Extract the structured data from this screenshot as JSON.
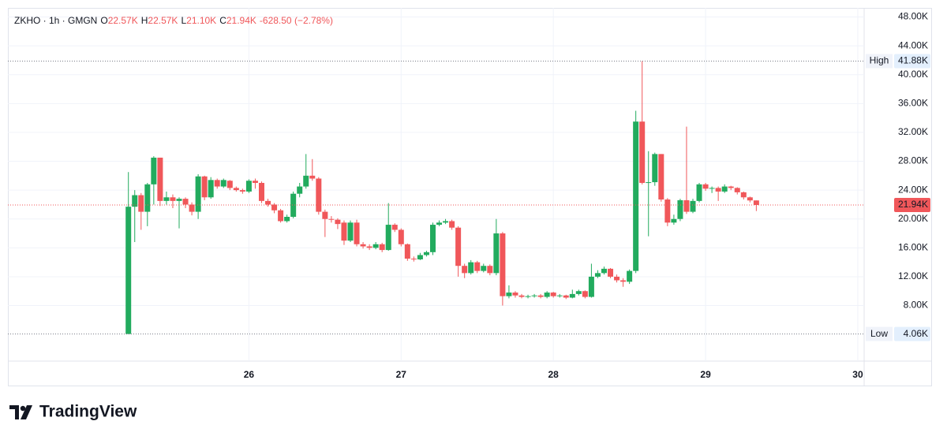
{
  "chart_data": {
    "type": "candlestick",
    "legend": {
      "symbol": "ZKHO · 1h · GMGN",
      "items": [
        {
          "key": "O",
          "value": "22.57K"
        },
        {
          "key": "H",
          "value": "22.57K"
        },
        {
          "key": "L",
          "value": "21.10K"
        },
        {
          "key": "C",
          "value": "21.94K"
        }
      ],
      "change": "-628.50 (−2.78%)"
    },
    "up_color": "#22ab5e",
    "down_color": "#f0575a",
    "x": [
      5,
      6,
      7,
      8,
      9,
      10,
      11,
      12,
      13,
      14,
      15,
      16,
      17,
      18,
      19,
      20,
      21,
      22,
      23,
      24,
      25,
      26,
      27,
      28,
      29,
      30,
      31,
      32,
      33,
      34,
      35,
      36,
      37,
      38,
      39,
      40,
      41,
      42,
      43,
      44,
      45,
      46,
      47,
      48,
      49,
      50,
      51,
      52,
      53,
      54,
      55,
      56,
      57,
      58,
      59,
      60,
      61,
      62,
      63,
      64,
      65,
      66,
      67,
      68,
      69,
      70,
      71,
      72,
      73,
      74,
      75,
      76,
      77,
      78,
      79,
      80,
      81,
      82,
      83,
      84,
      85,
      86,
      87,
      88,
      89,
      90,
      91,
      92,
      93,
      94,
      95,
      96,
      97,
      98,
      99,
      100,
      101,
      102,
      103,
      104
    ],
    "open": [
      4060,
      21700,
      23300,
      21000,
      24800,
      28500,
      22500,
      23000,
      22500,
      22800,
      22000,
      21000,
      25900,
      23000,
      25400,
      24500,
      25300,
      24300,
      24000,
      23800,
      25300,
      25000,
      22500,
      22000,
      21200,
      19700,
      20300,
      23500,
      24500,
      26000,
      25600,
      21000,
      20000,
      19900,
      19500,
      17000,
      19500,
      16500,
      16200,
      16000,
      16500,
      15700,
      19200,
      18500,
      16500,
      14500,
      14400,
      15000,
      15400,
      19200,
      19500,
      19700,
      18800,
      13500,
      12500,
      14000,
      12800,
      13500,
      12500,
      18000,
      9300,
      9800,
      9400,
      9200,
      9300,
      9400,
      9200,
      9800,
      9300,
      9400,
      9100,
      9600,
      10000,
      9200,
      12000,
      12500,
      13100,
      12000,
      11500,
      11300,
      12800,
      33500,
      25000,
      25100,
      29000,
      22700,
      19500,
      20000,
      22600,
      21000,
      22500,
      24800,
      24200,
      24300,
      23800,
      24500,
      24300,
      23700,
      23000,
      22570
    ],
    "high": [
      26500,
      24000,
      23600,
      25000,
      28700,
      28500,
      23800,
      23400,
      23000,
      23000,
      22300,
      26200,
      26000,
      25800,
      25600,
      25600,
      25400,
      24500,
      24200,
      25500,
      25600,
      25200,
      22800,
      22200,
      21400,
      20600,
      23800,
      25000,
      29000,
      28300,
      25800,
      21300,
      20400,
      20100,
      19800,
      19800,
      19900,
      16800,
      16500,
      16800,
      16700,
      22200,
      19400,
      18700,
      16600,
      14800,
      15300,
      15600,
      19500,
      19800,
      20000,
      19900,
      19000,
      13800,
      14300,
      14200,
      13800,
      13700,
      20000,
      18200,
      10800,
      10000,
      9600,
      9500,
      9600,
      9600,
      10000,
      9900,
      9600,
      9500,
      10200,
      10200,
      10100,
      13800,
      12900,
      13400,
      13200,
      12300,
      11800,
      13000,
      35000,
      41880,
      29400,
      29200,
      29000,
      22900,
      20600,
      22800,
      32800,
      22800,
      25000,
      25000,
      24500,
      24500,
      24800,
      24600,
      24400,
      23800,
      23100,
      22570
    ],
    "low": [
      4060,
      16800,
      18500,
      19000,
      22000,
      21800,
      22000,
      21500,
      18700,
      21500,
      20500,
      20000,
      22600,
      22800,
      24200,
      24300,
      24000,
      23800,
      23500,
      23600,
      24200,
      22200,
      21700,
      20800,
      19500,
      19500,
      20100,
      23000,
      24200,
      25300,
      20600,
      17500,
      19500,
      18600,
      16400,
      16800,
      16200,
      15900,
      15700,
      15800,
      15400,
      15600,
      18200,
      16200,
      14200,
      14100,
      14300,
      14800,
      15000,
      19000,
      19300,
      18500,
      12000,
      11800,
      12300,
      12500,
      12600,
      12200,
      12200,
      8000,
      9000,
      9100,
      9000,
      9000,
      9100,
      9000,
      9000,
      9100,
      9100,
      8900,
      9000,
      9400,
      9000,
      9100,
      11800,
      12300,
      11800,
      11200,
      10600,
      11000,
      12500,
      24800,
      17600,
      24600,
      22400,
      19000,
      19200,
      19700,
      20700,
      20800,
      22300,
      23900,
      23600,
      22500,
      23600,
      24000,
      23400,
      22700,
      22300,
      21100
    ],
    "close": [
      21700,
      23300,
      21000,
      24800,
      28500,
      22500,
      23000,
      22500,
      22800,
      22000,
      21000,
      25900,
      23000,
      25400,
      24500,
      25400,
      24300,
      24000,
      23800,
      25300,
      25000,
      22500,
      22000,
      21200,
      19700,
      20300,
      23500,
      24500,
      26000,
      25600,
      21000,
      20000,
      19900,
      19300,
      17000,
      19500,
      16500,
      16200,
      16000,
      16500,
      15700,
      19200,
      18500,
      16500,
      14500,
      14400,
      15000,
      15400,
      19200,
      19500,
      19700,
      18800,
      13500,
      12500,
      14000,
      12800,
      13500,
      12500,
      18000,
      9300,
      9800,
      9400,
      9200,
      9300,
      9400,
      9200,
      9800,
      9300,
      9400,
      9100,
      9600,
      10000,
      9200,
      12000,
      12500,
      13100,
      12000,
      11500,
      11300,
      12800,
      33500,
      25000,
      25100,
      29000,
      22700,
      19500,
      20000,
      22600,
      21000,
      22500,
      24800,
      24200,
      24300,
      23800,
      24500,
      24300,
      23700,
      23000,
      22570,
      21940
    ],
    "xlim": [
      -14,
      121
    ],
    "xticks": [
      {
        "value": 24,
        "label": "26"
      },
      {
        "value": 48,
        "label": "27"
      },
      {
        "value": 72,
        "label": "28"
      },
      {
        "value": 96,
        "label": "29"
      },
      {
        "value": 120,
        "label": "30"
      }
    ],
    "ylim": [
      300,
      49260
    ],
    "yticks": [
      {
        "value": 8000,
        "label": "8.00K"
      },
      {
        "value": 12000,
        "label": "12.00K"
      },
      {
        "value": 16000,
        "label": "16.00K"
      },
      {
        "value": 20000,
        "label": "20.00K"
      },
      {
        "value": 24000,
        "label": "24.00K"
      },
      {
        "value": 28000,
        "label": "28.00K"
      },
      {
        "value": 32000,
        "label": "32.00K"
      },
      {
        "value": 36000,
        "label": "36.00K"
      },
      {
        "value": 40000,
        "label": "40.00K"
      },
      {
        "value": 44000,
        "label": "44.00K"
      },
      {
        "value": 48000,
        "label": "48.00K"
      }
    ],
    "grid": true,
    "high_line": {
      "name": "High",
      "value": 41880,
      "label": "41.88K"
    },
    "low_line": {
      "name": "Low",
      "value": 4060,
      "label": "4.06K"
    },
    "last_price": {
      "value": 21940,
      "label": "21.94K"
    },
    "brand": "TradingView"
  }
}
